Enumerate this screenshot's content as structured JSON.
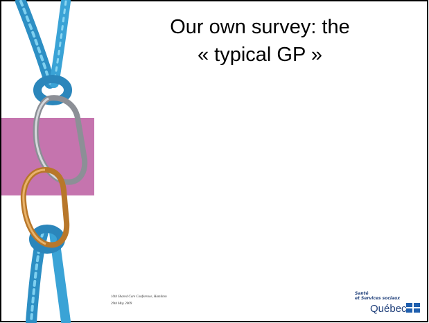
{
  "slide": {
    "title": [
      "Our own survey: the",
      "« typical GP »"
    ],
    "footer": [
      "10th Shared Care Conference, Hamilton",
      "29th May 2009"
    ],
    "logo": {
      "line1": "Santé",
      "line2": "et Services sociaux",
      "name": "Québec"
    }
  }
}
